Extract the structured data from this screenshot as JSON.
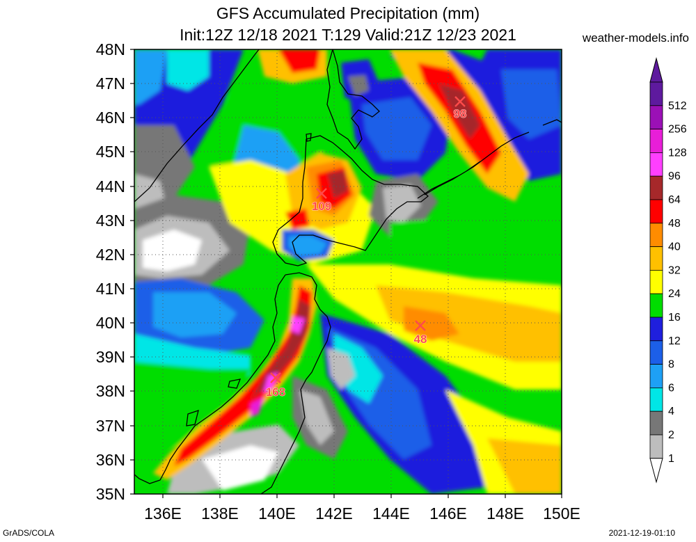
{
  "title": {
    "line1": "GFS Accumulated Precipitation (mm)",
    "line2": "Init:12Z 12/18 2021 T:129 Valid:21Z 12/23 2021"
  },
  "credit": "weather-models.info",
  "footer": {
    "left": "GrADS/COLA",
    "right": "2021-12-19-01:10"
  },
  "map": {
    "lat_range": [
      35,
      48
    ],
    "lon_range": [
      135,
      150
    ],
    "lat_labels": [
      "48N",
      "47N",
      "46N",
      "45N",
      "44N",
      "43N",
      "42N",
      "41N",
      "40N",
      "39N",
      "38N",
      "37N",
      "36N",
      "35N"
    ],
    "lon_labels": [
      "136E",
      "138E",
      "140E",
      "142E",
      "144E",
      "146E",
      "148E",
      "150E"
    ],
    "lon_label_values": [
      136,
      138,
      140,
      142,
      144,
      146,
      148,
      150
    ]
  },
  "colorbar": {
    "levels": [
      {
        "label": "512",
        "color": "#5e1a9e"
      },
      {
        "label": "256",
        "color": "#9b10b6"
      },
      {
        "label": "128",
        "color": "#e81ed8"
      },
      {
        "label": "96",
        "color": "#ff3fff"
      },
      {
        "label": "64",
        "color": "#a6282a"
      },
      {
        "label": "48",
        "color": "#ff0000"
      },
      {
        "label": "40",
        "color": "#ff8c00"
      },
      {
        "label": "32",
        "color": "#ffc000"
      },
      {
        "label": "24",
        "color": "#ffff00"
      },
      {
        "label": "16",
        "color": "#00dd00"
      },
      {
        "label": "12",
        "color": "#1f1fdd"
      },
      {
        "label": "8",
        "color": "#1c5fe8"
      },
      {
        "label": "6",
        "color": "#1ea0f5"
      },
      {
        "label": "4",
        "color": "#00e6e6"
      },
      {
        "label": "2",
        "color": "#777777"
      },
      {
        "label": "1",
        "color": "#bdbdbd"
      }
    ],
    "bottom_color": "#ffffff"
  },
  "markers": [
    {
      "label": "98",
      "lon": 146.4,
      "lat": 46.5
    },
    {
      "label": "109",
      "lon": 141.6,
      "lat": 43.8
    },
    {
      "label": "48",
      "lon": 145.0,
      "lat": 39.9
    },
    {
      "label": "168",
      "lon": 139.9,
      "lat": 38.4
    }
  ]
}
